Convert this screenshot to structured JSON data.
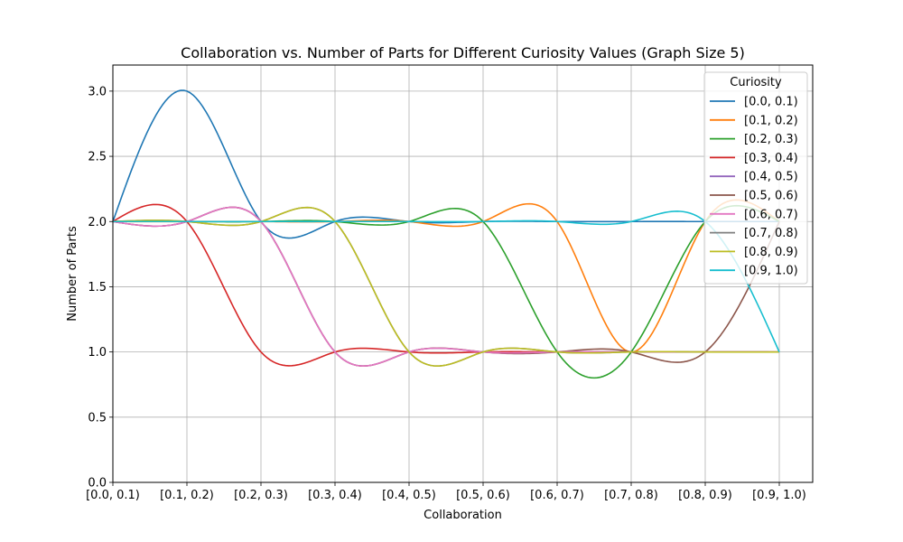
{
  "chart_data": {
    "type": "line",
    "title": "Collaboration vs. Number of Parts for Different Curiosity Values (Graph Size 5)",
    "xlabel": "Collaboration",
    "ylabel": "Number of Parts",
    "categories": [
      "[0.0, 0.1)",
      "[0.1, 0.2)",
      "[0.2, 0.3)",
      "[0.3, 0.4)",
      "[0.4, 0.5)",
      "[0.5, 0.6)",
      "[0.6, 0.7)",
      "[0.7, 0.8)",
      "[0.8, 0.9)",
      "[0.9, 1.0)"
    ],
    "ylim": [
      0,
      3.2
    ],
    "yticks": [
      0.0,
      0.5,
      1.0,
      1.5,
      2.0,
      2.5,
      3.0
    ],
    "ytick_labels": [
      "0.0",
      "0.5",
      "1.0",
      "1.5",
      "2.0",
      "2.5",
      "3.0"
    ],
    "grid": true,
    "legend": {
      "title": "Curiosity",
      "placement": "upper right"
    },
    "interpolation": "smooth spline through category points",
    "series": [
      {
        "name": "[0.0, 0.1)",
        "color": "#1f77b4",
        "values": [
          2,
          3,
          2,
          2,
          2,
          2,
          2,
          2,
          2,
          2
        ]
      },
      {
        "name": "[0.1, 0.2)",
        "color": "#ff7f0e",
        "values": [
          2,
          2,
          2,
          2,
          2,
          2,
          2,
          1,
          2,
          2
        ]
      },
      {
        "name": "[0.2, 0.3)",
        "color": "#2ca02c",
        "values": [
          2,
          2,
          2,
          2,
          2,
          2,
          1,
          1,
          2,
          2
        ]
      },
      {
        "name": "[0.3, 0.4)",
        "color": "#d62728",
        "values": [
          2,
          2,
          1,
          1,
          1,
          1,
          1,
          1,
          1,
          1
        ]
      },
      {
        "name": "[0.4, 0.5)",
        "color": "#9467bd",
        "values": [
          2,
          2,
          2,
          1,
          1,
          1,
          1,
          1,
          1,
          1
        ]
      },
      {
        "name": "[0.5, 0.6)",
        "color": "#8c564b",
        "values": [
          2,
          2,
          2,
          1,
          1,
          1,
          1,
          1,
          1,
          2
        ]
      },
      {
        "name": "[0.6, 0.7)",
        "color": "#e377c2",
        "values": [
          2,
          2,
          2,
          1,
          1,
          1,
          1,
          1,
          1,
          1
        ]
      },
      {
        "name": "[0.7, 0.8)",
        "color": "#7f7f7f",
        "values": [
          2,
          2,
          2,
          2,
          1,
          1,
          1,
          1,
          1,
          1
        ]
      },
      {
        "name": "[0.8, 0.9)",
        "color": "#bcbd22",
        "values": [
          2,
          2,
          2,
          2,
          1,
          1,
          1,
          1,
          1,
          1
        ]
      },
      {
        "name": "[0.9, 1.0)",
        "color": "#17becf",
        "values": [
          2,
          2,
          2,
          2,
          2,
          2,
          2,
          2,
          2,
          1
        ]
      }
    ]
  }
}
